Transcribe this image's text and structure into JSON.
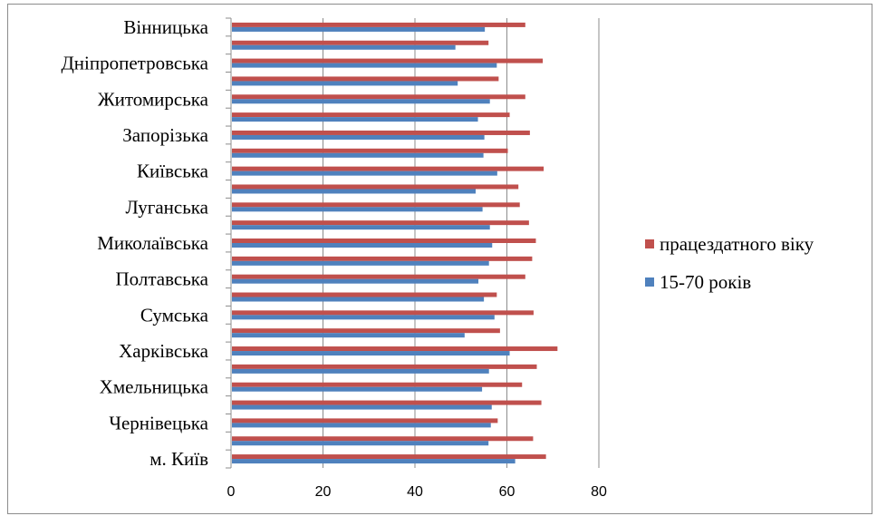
{
  "chart_data": {
    "type": "bar",
    "orientation": "horizontal",
    "title": "",
    "xlabel": "",
    "ylabel": "",
    "xlim": [
      0,
      80
    ],
    "x_ticks": [
      "0",
      "20",
      "40",
      "60",
      "80"
    ],
    "grid": "vertical major gridlines",
    "legend_position": "right",
    "category_labels": [
      "Вінницька",
      "Дніпропетровська",
      "Житомирська",
      "Запорізька",
      "Київська",
      "Луганська",
      "Миколаївська",
      "Полтавська",
      "Сумська",
      "Харківська",
      "Хмельницька",
      "Чернівецька",
      "м. Київ"
    ],
    "categories_count_note": "",
    "rows": 25,
    "series": [
      {
        "name": "працездатного віку",
        "color": "#c0504d",
        "values": [
          64,
          56,
          67.8,
          58.2,
          64,
          60.6,
          65,
          60.2,
          68,
          62.5,
          62.8,
          64.8,
          66.3,
          65.5,
          64,
          57.8,
          65.8,
          58.5,
          71,
          66.5,
          63.3,
          67.5,
          58,
          65.7,
          68.5
        ]
      },
      {
        "name": "15-70 років",
        "color": "#4f81bd",
        "values": [
          55.2,
          48.8,
          57.8,
          49.3,
          56.3,
          53.7,
          55.1,
          54.9,
          57.9,
          53.2,
          54.7,
          56.3,
          56.8,
          56.1,
          53.8,
          55,
          57.3,
          50.8,
          60.6,
          56.1,
          54.6,
          56.7,
          56.5,
          56,
          61.8
        ]
      }
    ]
  }
}
